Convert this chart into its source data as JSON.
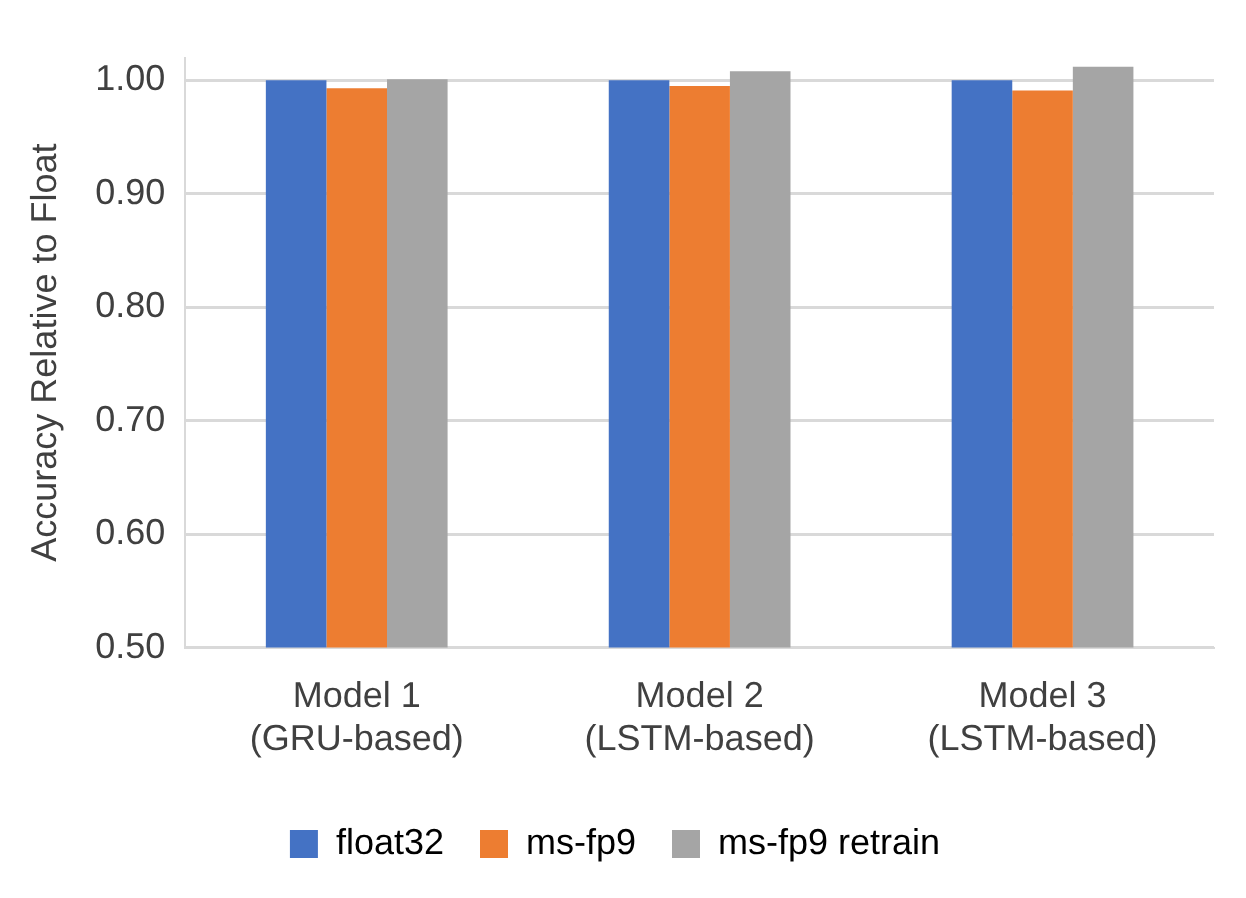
{
  "chart_data": {
    "type": "bar",
    "ylabel": "Accuracy Relative to Float",
    "categories": [
      "Model 1\n(GRU-based)",
      "Model 2\n(LSTM-based)",
      "Model 3\n(LSTM-based)"
    ],
    "series": [
      {
        "name": "float32",
        "color": "#4472c4",
        "values": [
          1.0,
          1.0,
          1.0
        ]
      },
      {
        "name": "ms-fp9",
        "color": "#ed7d31",
        "values": [
          0.993,
          0.995,
          0.991
        ]
      },
      {
        "name": "ms-fp9 retrain",
        "color": "#a5a5a5",
        "values": [
          1.001,
          1.008,
          1.012
        ]
      }
    ],
    "ylim": [
      0.5,
      1.02
    ],
    "yticks": [
      {
        "value": 0.5,
        "label": "0.50"
      },
      {
        "value": 0.6,
        "label": "0.60"
      },
      {
        "value": 0.7,
        "label": "0.70"
      },
      {
        "value": 0.8,
        "label": "0.80"
      },
      {
        "value": 0.9,
        "label": "0.90"
      },
      {
        "value": 1.0,
        "label": "1.00"
      }
    ],
    "grid": "y",
    "legend": "bottom"
  }
}
